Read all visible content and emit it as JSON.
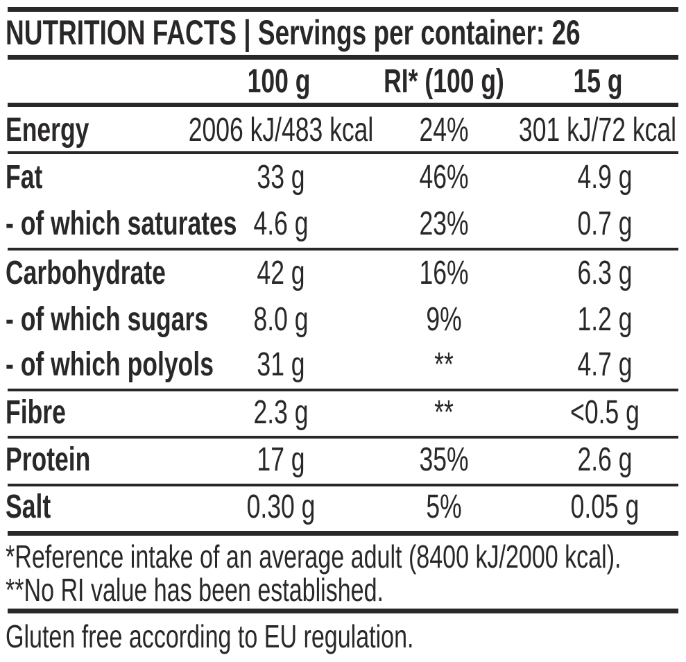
{
  "title": "NUTRITION FACTS | Servings per container: 26",
  "columns": {
    "per100": "100 g",
    "ri": "RI* (100 g)",
    "serving": "15 g"
  },
  "rows": [
    {
      "label": "Energy",
      "per100": "2006 kJ/483 kcal",
      "ri": "24%",
      "serving": "301 kJ/72 kcal"
    },
    {
      "label": "Fat",
      "per100": "33 g",
      "ri": "46%",
      "serving": "4.9 g"
    },
    {
      "label": "- of which saturates",
      "per100": "4.6 g",
      "ri": "23%",
      "serving": "0.7 g"
    },
    {
      "label": "Carbohydrate",
      "per100": "42 g",
      "ri": "16%",
      "serving": "6.3 g"
    },
    {
      "label": "- of which sugars",
      "per100": "8.0 g",
      "ri": "9%",
      "serving": "1.2 g"
    },
    {
      "label": "- of which polyols",
      "per100": "31 g",
      "ri": "**",
      "serving": "4.7 g"
    },
    {
      "label": "Fibre",
      "per100": "2.3 g",
      "ri": "**",
      "serving": "<0.5 g"
    },
    {
      "label": "Protein",
      "per100": "17 g",
      "ri": "35%",
      "serving": "2.6 g"
    },
    {
      "label": "Salt",
      "per100": "0.30 g",
      "ri": "5%",
      "serving": "0.05 g"
    }
  ],
  "footnotes": [
    "*Reference intake of an average adult (8400 kJ/2000 kcal).",
    "**No RI value has been established."
  ],
  "note": "Gluten free according to EU regulation."
}
